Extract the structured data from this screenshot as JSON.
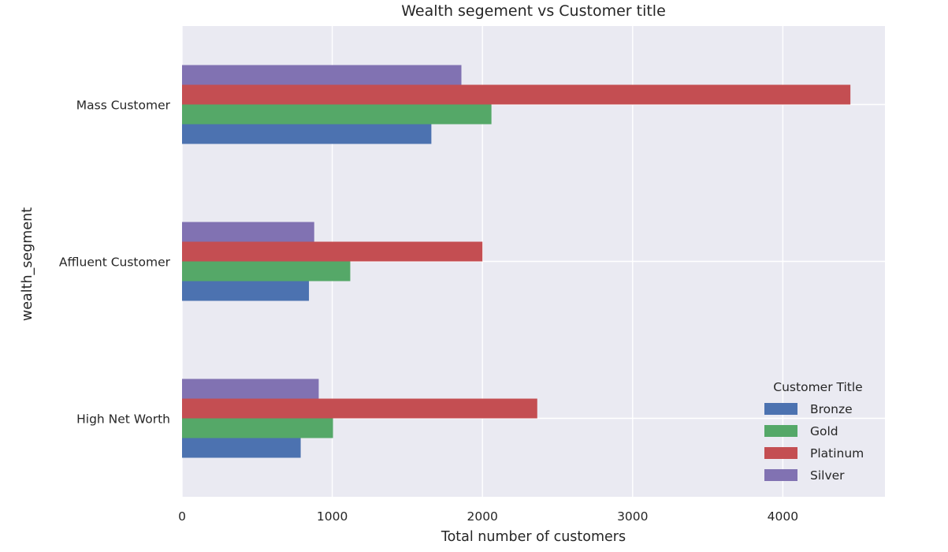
{
  "chart_data": {
    "type": "bar",
    "orientation": "horizontal",
    "title": "Wealth segement vs Customer title",
    "xlabel": "Total number of customers",
    "ylabel": "wealth_segment",
    "categories": [
      "High Net Worth",
      "Affluent Customer",
      "Mass Customer"
    ],
    "xlim": [
      0,
      4680
    ],
    "xticks": [
      0,
      1000,
      2000,
      3000,
      4000
    ],
    "xtick_labels": [
      "0",
      "1000",
      "2000",
      "3000",
      "4000"
    ],
    "series": [
      {
        "name": "Bronze",
        "color": "#4C72B0",
        "values": [
          790,
          845,
          1660
        ]
      },
      {
        "name": "Gold",
        "color": "#55A868",
        "values": [
          1005,
          1120,
          2060
        ]
      },
      {
        "name": "Platinum",
        "color": "#C44E52",
        "values": [
          2365,
          2000,
          4450
        ]
      },
      {
        "name": "Silver",
        "color": "#8172B2",
        "values": [
          910,
          880,
          1860
        ]
      }
    ],
    "legend": {
      "title": "Customer Title",
      "position": "lower-right"
    },
    "grid": true,
    "style": {
      "background": "#EAEAF2",
      "gridline": "#FFFFFF"
    }
  }
}
